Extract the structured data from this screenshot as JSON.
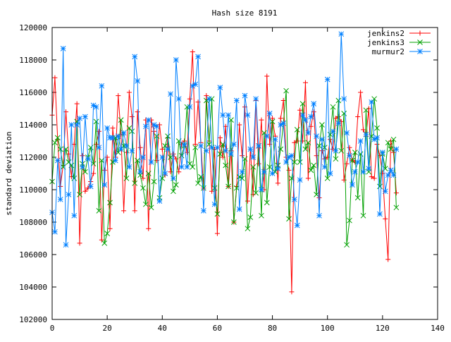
{
  "chart_data": {
    "type": "line",
    "title": "Hash size 8191",
    "xlabel": "",
    "ylabel": "standard deviation",
    "xlim": [
      0,
      140
    ],
    "ylim": [
      102000,
      120000
    ],
    "x_ticks": [
      0,
      20,
      40,
      60,
      80,
      100,
      120,
      140
    ],
    "y_ticks": [
      102000,
      104000,
      106000,
      108000,
      110000,
      112000,
      114000,
      116000,
      118000,
      120000
    ],
    "grid": false,
    "legend_position": "top-right",
    "x": [
      0,
      1,
      2,
      3,
      4,
      5,
      6,
      7,
      8,
      9,
      10,
      11,
      12,
      13,
      14,
      15,
      16,
      17,
      18,
      19,
      20,
      21,
      22,
      23,
      24,
      25,
      26,
      27,
      28,
      29,
      30,
      31,
      32,
      33,
      34,
      35,
      36,
      37,
      38,
      39,
      40,
      41,
      42,
      43,
      44,
      45,
      46,
      47,
      48,
      49,
      50,
      51,
      52,
      53,
      54,
      55,
      56,
      57,
      58,
      59,
      60,
      61,
      62,
      63,
      64,
      65,
      66,
      67,
      68,
      69,
      70,
      71,
      72,
      73,
      74,
      75,
      76,
      77,
      78,
      79,
      80,
      81,
      82,
      83,
      84,
      85,
      86,
      87,
      88,
      89,
      90,
      91,
      92,
      93,
      94,
      95,
      96,
      97,
      98,
      99,
      100,
      101,
      102,
      103,
      104,
      105,
      106,
      107,
      108,
      109,
      110,
      111,
      112,
      113,
      114,
      115,
      116,
      117,
      118,
      119,
      120,
      121,
      122,
      123,
      124,
      125
    ],
    "series": [
      {
        "name": "jenkins2",
        "color": "#ff0000",
        "marker": "+",
        "values": [
          114600,
          116900,
          113100,
          110200,
          111500,
          114800,
          112200,
          110800,
          112800,
          115300,
          106700,
          112100,
          109900,
          110100,
          110500,
          111000,
          112800,
          113600,
          106900,
          111200,
          112000,
          107600,
          113800,
          112000,
          115800,
          113400,
          108700,
          112300,
          116000,
          114500,
          108700,
          114800,
          112600,
          110700,
          114300,
          107600,
          114300,
          113600,
          111800,
          114000,
          112500,
          110900,
          113200,
          111100,
          112200,
          111900,
          111100,
          112800,
          113000,
          112300,
          115600,
          118500,
          112800,
          115400,
          112900,
          110100,
          115800,
          113000,
          109900,
          112500,
          107300,
          113200,
          112000,
          113900,
          110200,
          112400,
          108000,
          110200,
          114000,
          112100,
          115100,
          109300,
          112500,
          109700,
          115500,
          111600,
          114300,
          110000,
          117000,
          112800,
          114400,
          113300,
          110400,
          114400,
          115500,
          112000,
          111200,
          103700,
          112900,
          113000,
          114900,
          113000,
          116600,
          110700,
          113900,
          114800,
          112100,
          109500,
          112400,
          111900,
          112000,
          113100,
          112500,
          114400,
          114500,
          114200,
          110600,
          111600,
          112600,
          111800,
          111700,
          114500,
          116000,
          113700,
          113300,
          115000,
          110800,
          110700,
          112800,
          112100,
          111000,
          108200,
          105700,
          113000,
          112300,
          109800
        ]
      },
      {
        "name": "jenkins3",
        "color": "#00a000",
        "marker": "x",
        "values": [
          110500,
          112900,
          113200,
          112500,
          111400,
          112500,
          111700,
          111500,
          110700,
          114200,
          109700,
          111600,
          111100,
          112000,
          112600,
          111600,
          114200,
          108700,
          111800,
          106700,
          107300,
          109200,
          111700,
          113200,
          112300,
          114300,
          112700,
          110700,
          113800,
          113600,
          110400,
          111800,
          110900,
          110100,
          109100,
          111000,
          108900,
          110500,
          113300,
          109500,
          110700,
          112700,
          113300,
          112000,
          109900,
          110300,
          113000,
          112100,
          112700,
          115100,
          111600,
          111400,
          112600,
          110400,
          110800,
          110100,
          115500,
          112800,
          115600,
          110100,
          108500,
          112200,
          112800,
          111500,
          110200,
          114300,
          108000,
          110100,
          110800,
          110700,
          111900,
          107600,
          108300,
          111400,
          109800,
          112700,
          108400,
          113500,
          109200,
          111400,
          114200,
          111100,
          111500,
          112500,
          114100,
          116100,
          108200,
          110700,
          111700,
          113700,
          111700,
          115300,
          112500,
          112900,
          111200,
          111500,
          109700,
          112700,
          114000,
          112600,
          110700,
          113400,
          115100,
          111900,
          115500,
          112400,
          114700,
          106600,
          108100,
          111800,
          112300,
          109500,
          112200,
          108400,
          114900,
          111100,
          113300,
          115600,
          113800,
          110200,
          112200,
          111300,
          112900,
          112500,
          113100,
          108900
        ]
      },
      {
        "name": "murmur2",
        "color": "#0080ff",
        "marker": "*",
        "values": [
          108600,
          107400,
          111800,
          109400,
          118700,
          106600,
          109700,
          114000,
          108400,
          114000,
          114400,
          111400,
          114500,
          111900,
          110200,
          115200,
          115100,
          112600,
          116400,
          110300,
          113800,
          113200,
          113200,
          111800,
          113300,
          112500,
          113500,
          112700,
          111400,
          112400,
          118200,
          116700,
          111100,
          112000,
          113900,
          114300,
          111700,
          114000,
          113900,
          109300,
          112000,
          111000,
          112500,
          115900,
          110700,
          118000,
          115600,
          111400,
          112800,
          111400,
          115100,
          116400,
          116500,
          118200,
          112700,
          108700,
          112400,
          115600,
          112600,
          109100,
          112600,
          116300,
          114600,
          112400,
          114600,
          112200,
          112800,
          115500,
          108800,
          111100,
          115800,
          114600,
          112500,
          112000,
          115600,
          112700,
          110000,
          111100,
          113300,
          114700,
          111000,
          113100,
          111300,
          114000,
          114100,
          111700,
          112000,
          112100,
          109400,
          107800,
          110600,
          114600,
          114300,
          113500,
          114500,
          115300,
          113300,
          108400,
          113100,
          111400,
          116800,
          111000,
          113600,
          112400,
          114100,
          119600,
          115600,
          113500,
          112100,
          110300,
          111100,
          111700,
          113000,
          111100,
          113400,
          111300,
          115400,
          113100,
          113200,
          108500,
          112300,
          109900,
          110900,
          111200,
          110900,
          112500
        ]
      }
    ]
  }
}
